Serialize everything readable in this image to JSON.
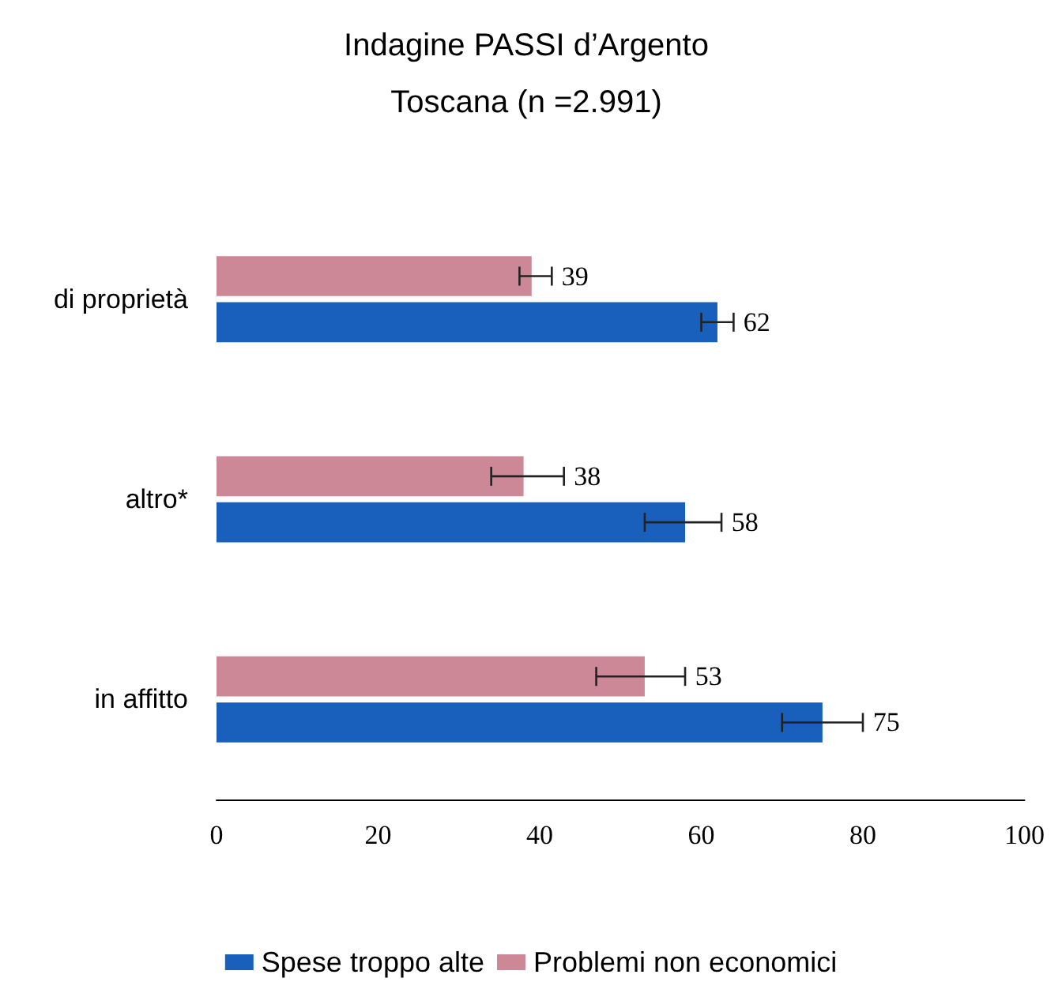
{
  "chart_data": {
    "type": "bar",
    "orientation": "horizontal",
    "title": "Indagine PASSI d’Argento",
    "subtitle": "Toscana (n =2.991)",
    "categories": [
      "di proprietà",
      "altro*",
      "in affitto"
    ],
    "series": [
      {
        "name": "Spese troppo alte",
        "color": "#1860bc",
        "values": [
          62,
          58,
          75
        ],
        "errors": [
          [
            60,
            64
          ],
          [
            53,
            62.5
          ],
          [
            70,
            80
          ]
        ]
      },
      {
        "name": "Problemi non economici",
        "color": "#cc8896",
        "values": [
          39,
          38,
          53
        ],
        "errors": [
          [
            37.5,
            41.5
          ],
          [
            34,
            43
          ],
          [
            47,
            58
          ]
        ]
      }
    ],
    "xlim": [
      0,
      100
    ],
    "xticks": [
      0,
      20,
      40,
      60,
      80,
      100
    ],
    "data_labels": true,
    "grid": false,
    "legend": "bottom"
  }
}
